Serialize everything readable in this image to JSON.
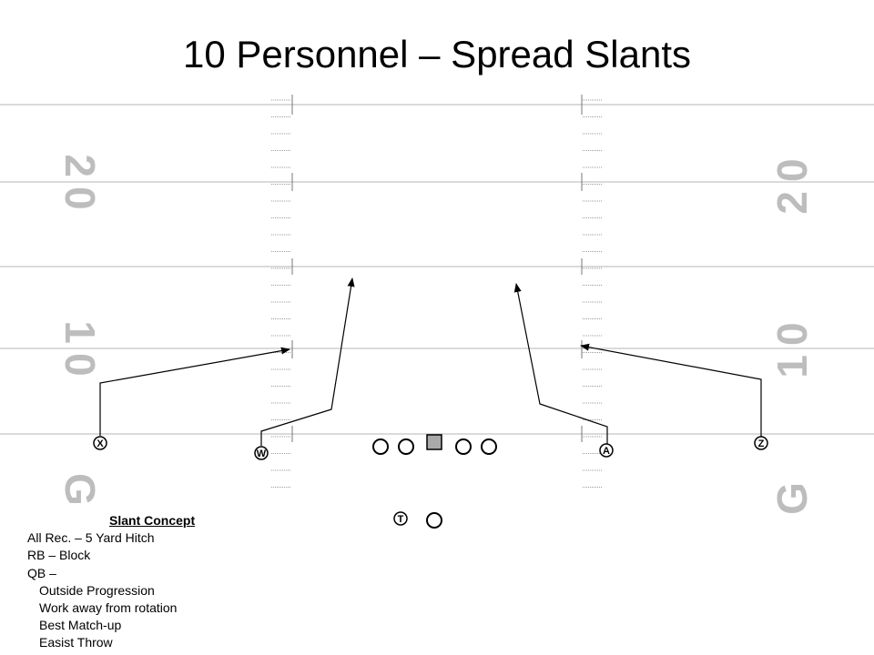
{
  "title": "10 Personnel – Spread Slants",
  "field": {
    "left_numbers": [
      "20",
      "10",
      "G"
    ],
    "right_numbers": [
      "20",
      "10",
      "G"
    ]
  },
  "players": {
    "X": "X",
    "W": "W",
    "A": "A",
    "Z": "Z",
    "T": "T"
  },
  "notes": {
    "heading": "Slant Concept",
    "lines": [
      "All Rec. – 5 Yard Hitch",
      "RB – Block",
      "QB –"
    ],
    "qb_points": [
      "Outside Progression",
      "Work away from rotation",
      "Best Match-up",
      "Easist Throw"
    ]
  }
}
